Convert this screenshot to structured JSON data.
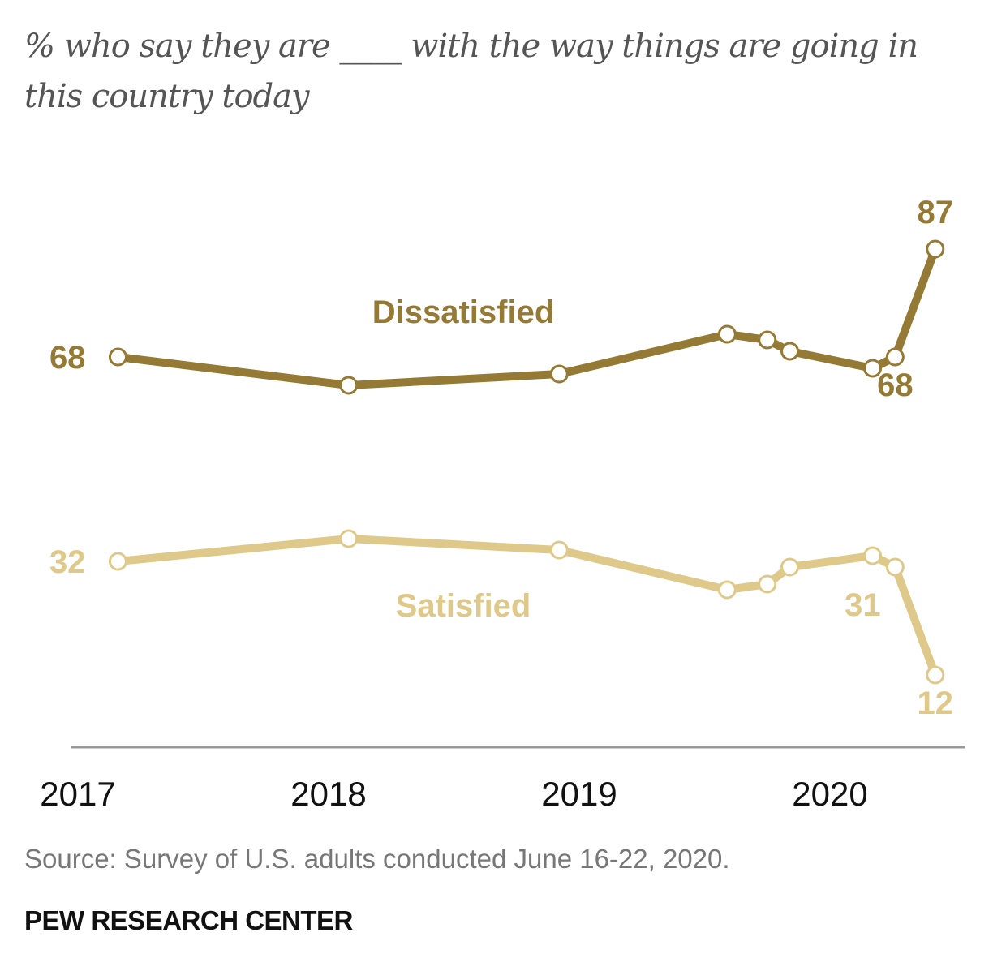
{
  "title": "% who say they are ____ with the way things are going in this country today",
  "source": "Source: Survey of U.S. adults conducted June 16-22, 2020.",
  "brand": "PEW RESEARCH CENTER",
  "chart_data": {
    "type": "line",
    "title": "% who say they are ____ with the way things are going in this country today",
    "xlabel": "",
    "ylabel": "",
    "x_ticks": [
      "2017",
      "2018",
      "2019",
      "2020"
    ],
    "x_tick_values": [
      2017.0,
      2018.0,
      2019.0,
      2020.0
    ],
    "x_range": [
      2016.85,
      2020.55
    ],
    "ylim": [
      0,
      100
    ],
    "grid": false,
    "x": [
      2017.16,
      2018.08,
      2018.92,
      2019.59,
      2019.75,
      2019.84,
      2020.17,
      2020.26,
      2020.42
    ],
    "series": [
      {
        "name": "Dissatisfied",
        "color": "#947a34",
        "values": [
          68,
          63,
          65,
          72,
          71,
          69,
          66,
          68,
          87
        ],
        "labels": [
          {
            "index": 0,
            "text": "68",
            "position": "left"
          },
          {
            "index": 7,
            "text": "68",
            "position": "below"
          },
          {
            "index": 8,
            "text": "87",
            "position": "above"
          }
        ],
        "series_label_position": "above-middle"
      },
      {
        "name": "Satisfied",
        "color": "#dfc98a",
        "values": [
          32,
          36,
          34,
          27,
          28,
          31,
          33,
          31,
          12
        ],
        "labels": [
          {
            "index": 0,
            "text": "32",
            "position": "left"
          },
          {
            "index": 7,
            "text": "31",
            "position": "below-left"
          },
          {
            "index": 8,
            "text": "12",
            "position": "below"
          }
        ],
        "series_label_position": "below-middle"
      }
    ]
  }
}
